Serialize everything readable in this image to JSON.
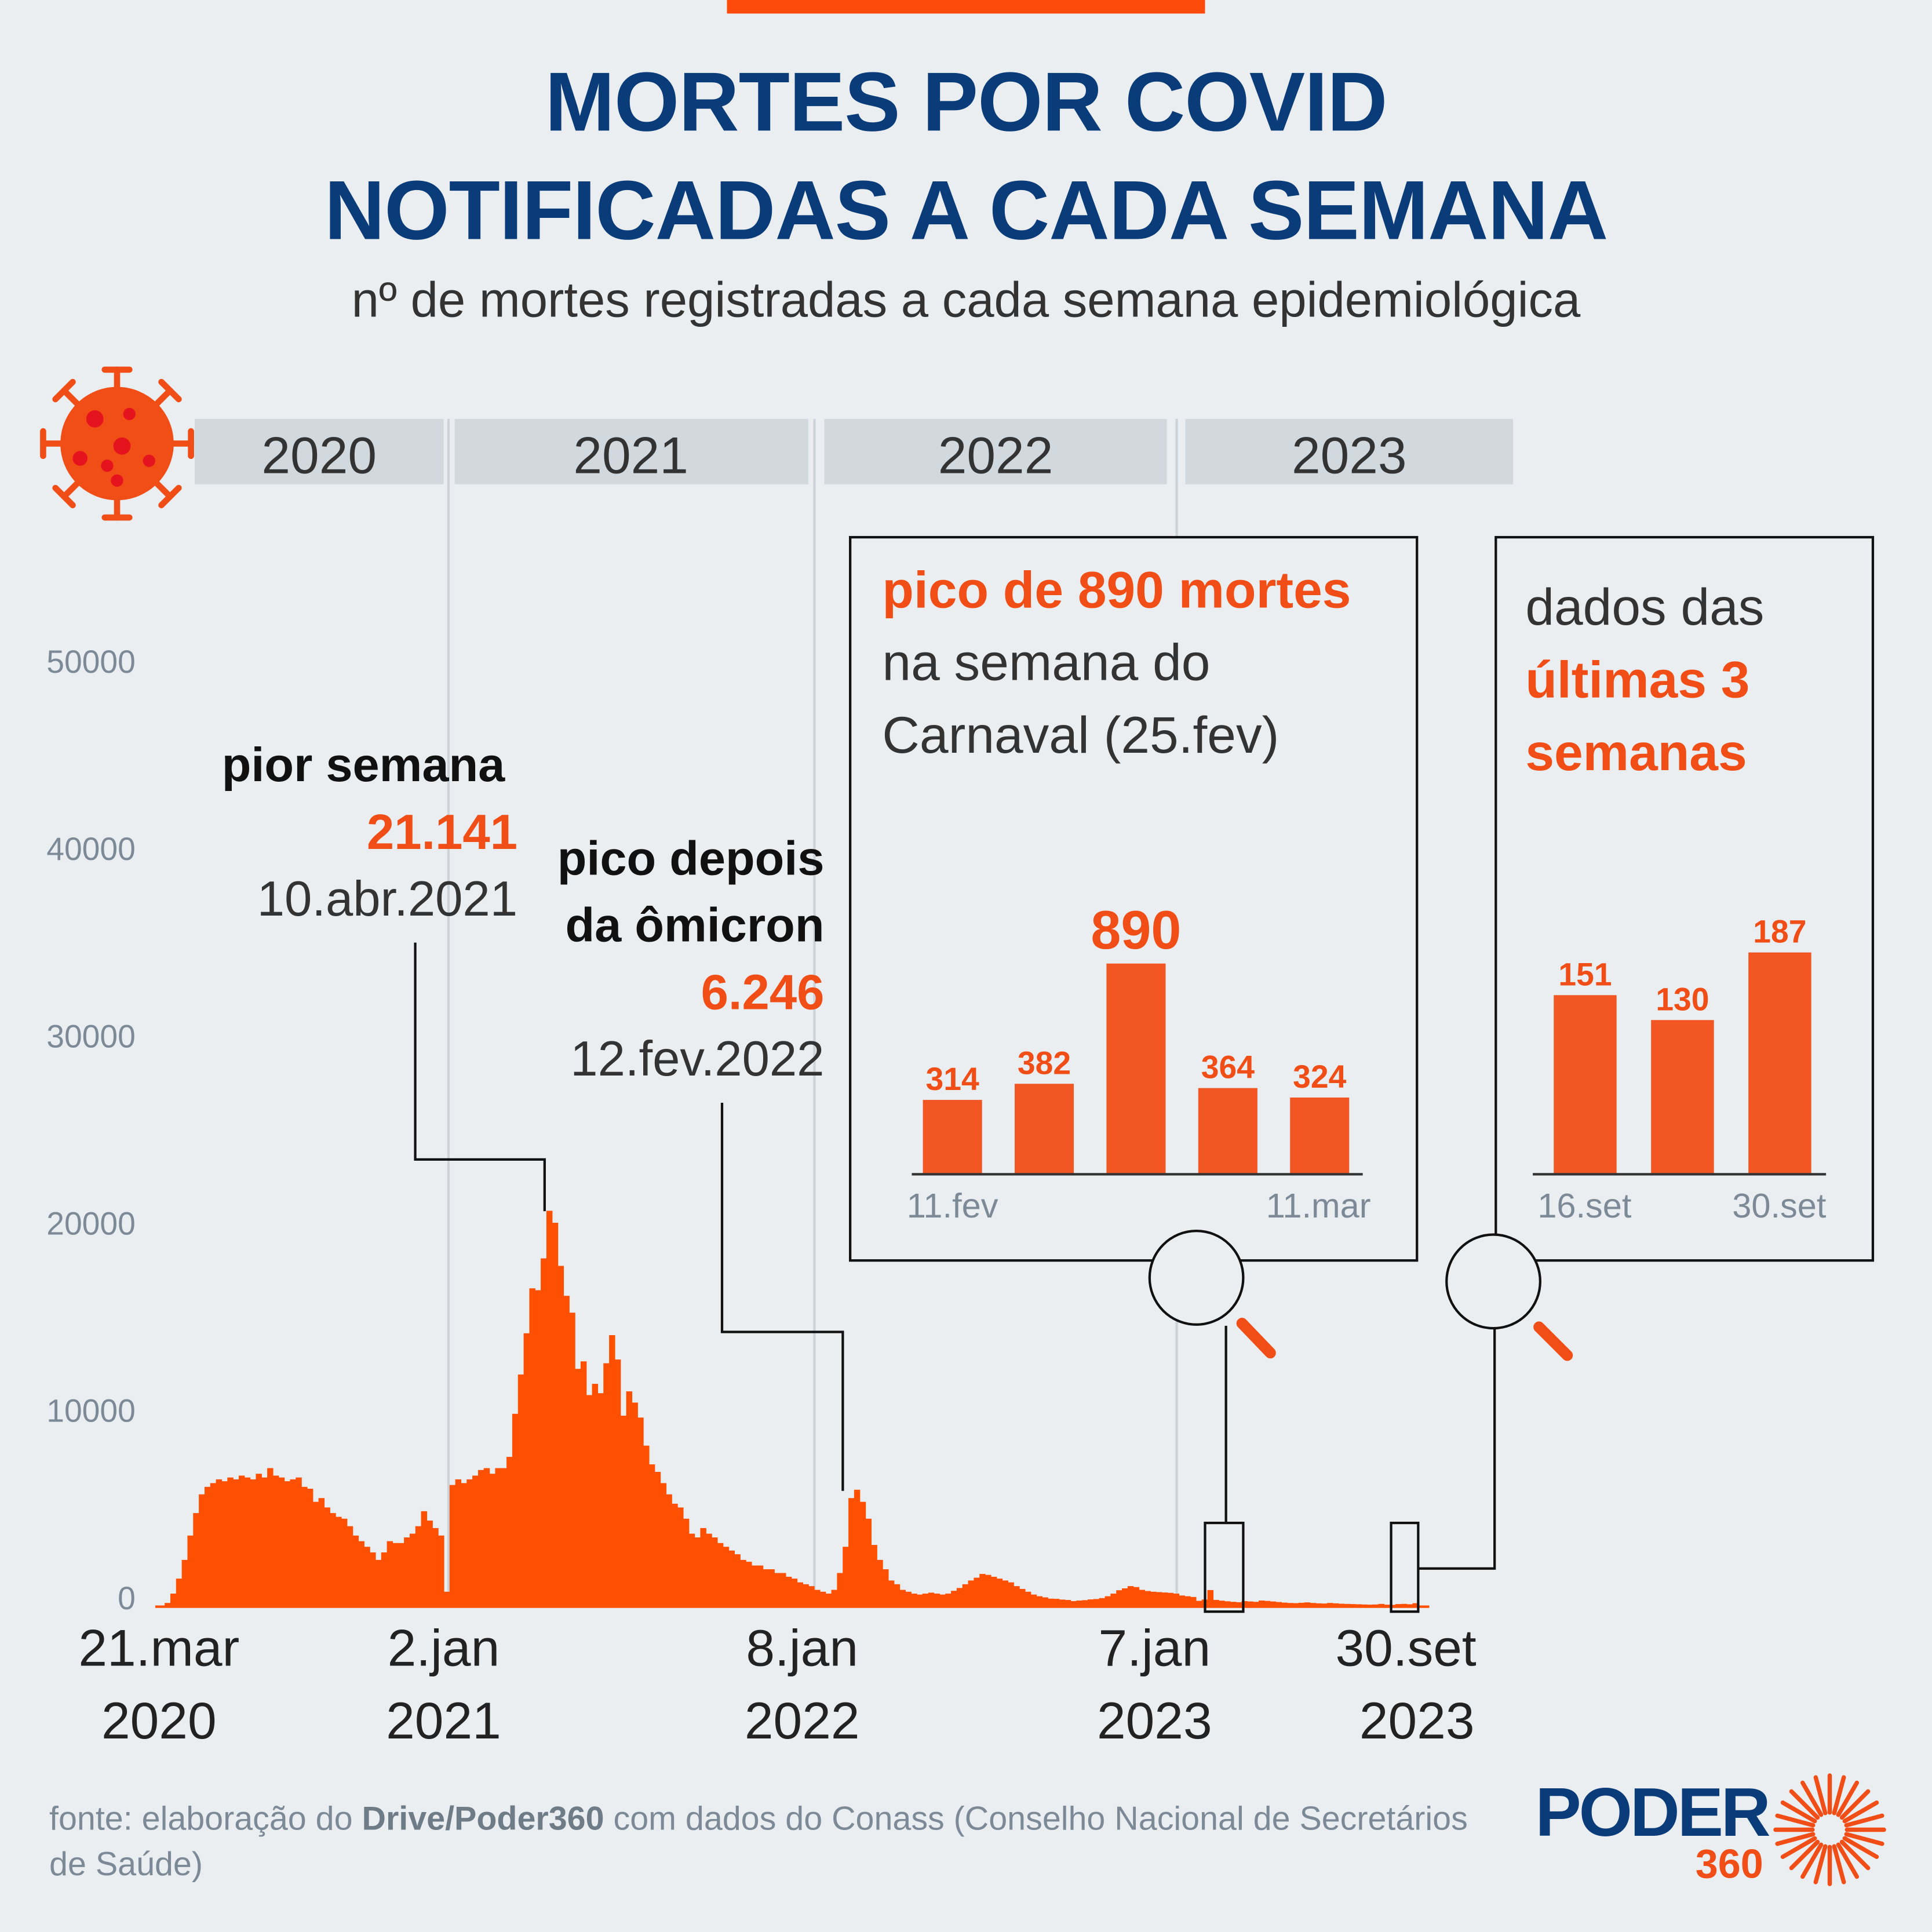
{
  "header": {
    "title_line1": "MORTES POR COVID",
    "title_line2": "NOTIFICADAS A CADA SEMANA",
    "subtitle": "nº de mortes registradas a cada semana epidemiológica"
  },
  "years": [
    "2020",
    "2021",
    "2022",
    "2023"
  ],
  "annotations": {
    "worst": {
      "label": "pior semana",
      "value": "21.141",
      "date": "10.abr.2021"
    },
    "omicron": {
      "label_line1": "pico depois",
      "label_line2": "da ômicron",
      "value": "6.246",
      "date": "12.fev.2022"
    }
  },
  "inset_carnaval": {
    "headline": "pico de 890 mortes",
    "line2": "na semana do",
    "line3": "Carnaval (25.fev)",
    "values": [
      314,
      382,
      890,
      364,
      324
    ],
    "labels": [
      "314",
      "382",
      "890",
      "364",
      "324"
    ],
    "x_start": "11.fev",
    "x_end": "11.mar"
  },
  "inset_recent": {
    "line1": "dados das",
    "line2": "últimas 3",
    "line3": "semanas",
    "values": [
      151,
      130,
      187
    ],
    "labels": [
      "151",
      "130",
      "187"
    ],
    "x_start": "16.set",
    "x_end": "30.set"
  },
  "x_axis_labels": [
    {
      "day": "21.mar",
      "year": "2020"
    },
    {
      "day": "2.jan",
      "year": "2021"
    },
    {
      "day": "8.jan",
      "year": "2022"
    },
    {
      "day": "7.jan",
      "year": "2023"
    },
    {
      "day": "30.set",
      "year": "2023"
    }
  ],
  "y_axis_labels": [
    "50000",
    "40000",
    "30000",
    "20000",
    "10000",
    "0"
  ],
  "source": {
    "prefix": "fonte: elaboração do ",
    "bold": "Drive/Poder360",
    "suffix": " com dados do Conass (Conselho Nacional de Secretários de Saúde)"
  },
  "logo": {
    "word": "PODER",
    "number": "360"
  },
  "colors": {
    "bars": "#fe5000",
    "title": "#0b3c7a",
    "accent": "#f04e16",
    "inset_bars": "#f15623",
    "year_band": "#d1d8de"
  },
  "chart_data": {
    "type": "bar",
    "title": "MORTES POR COVID NOTIFICADAS A CADA SEMANA",
    "subtitle": "nº de mortes registradas a cada semana epidemiológica",
    "x_start": "21.mar.2020",
    "x_end": "30.set.2023",
    "x_interval": "1 week",
    "ylim": [
      0,
      50000
    ],
    "y_ticks": [
      0,
      10000,
      20000,
      30000,
      40000,
      50000
    ],
    "grid": false,
    "values": [
      60,
      200,
      700,
      1500,
      2500,
      3800,
      5000,
      6000,
      6400,
      6600,
      6800,
      6700,
      6900,
      6800,
      7000,
      6900,
      6800,
      7100,
      6900,
      7400,
      7000,
      6900,
      6700,
      6800,
      6900,
      6400,
      6300,
      5600,
      5800,
      5300,
      5000,
      4800,
      4700,
      4300,
      3800,
      3500,
      3200,
      2900,
      2500,
      2900,
      3500,
      3400,
      3400,
      3700,
      3900,
      4300,
      5100,
      4600,
      4200,
      3800,
      800,
      6500,
      6800,
      6600,
      6800,
      7000,
      7300,
      7400,
      7100,
      7400,
      7400,
      8000,
      10300,
      12400,
      14600,
      17000,
      16900,
      18600,
      21141,
      20500,
      18200,
      16600,
      15700,
      12700,
      13100,
      11300,
      11900,
      11400,
      13000,
      14500,
      13200,
      10200,
      11500,
      10900,
      10100,
      8600,
      7600,
      7200,
      6600,
      6000,
      5500,
      5300,
      4700,
      3900,
      3700,
      4200,
      3900,
      3700,
      3400,
      3200,
      3000,
      2800,
      2500,
      2400,
      2200,
      2200,
      2000,
      2000,
      1800,
      1800,
      1600,
      1500,
      1300,
      1200,
      1100,
      900,
      800,
      700,
      900,
      1800,
      3200,
      5800,
      6246,
      5600,
      4700,
      3300,
      2500,
      2000,
      1400,
      1200,
      900,
      800,
      700,
      650,
      700,
      750,
      700,
      650,
      700,
      850,
      1000,
      1200,
      1400,
      1550,
      1750,
      1700,
      1600,
      1500,
      1400,
      1300,
      1100,
      950,
      800,
      650,
      560,
      500,
      430,
      420,
      380,
      360,
      300,
      330,
      350,
      390,
      410,
      460,
      560,
      700,
      880,
      980,
      1100,
      1050,
      900,
      840,
      800,
      780,
      760,
      740,
      700,
      600,
      560,
      520,
      314,
      382,
      890,
      364,
      324,
      290,
      260,
      240,
      300,
      280,
      260,
      330,
      310,
      280,
      250,
      220,
      200,
      190,
      210,
      230,
      200,
      180,
      170,
      200,
      180,
      160,
      150,
      140,
      130,
      120,
      110,
      120,
      150,
      110,
      100,
      140,
      151,
      130,
      187
    ],
    "series": [
      {
        "values_key": "values"
      }
    ],
    "annotations": [
      {
        "label": "pior semana",
        "value": 21141,
        "date": "10.abr.2021"
      },
      {
        "label": "pico depois da ômicron",
        "value": 6246,
        "date": "12.fev.2022"
      }
    ],
    "insets": [
      {
        "title": "pico de 890 mortes na semana do Carnaval (25.fev)",
        "type": "bar",
        "values": [
          314,
          382,
          890,
          364,
          324
        ],
        "x_range": [
          "11.fev",
          "11.mar"
        ]
      },
      {
        "title": "dados das últimas 3 semanas",
        "type": "bar",
        "values": [
          151,
          130,
          187
        ],
        "x_range": [
          "16.set",
          "30.set"
        ]
      }
    ]
  }
}
